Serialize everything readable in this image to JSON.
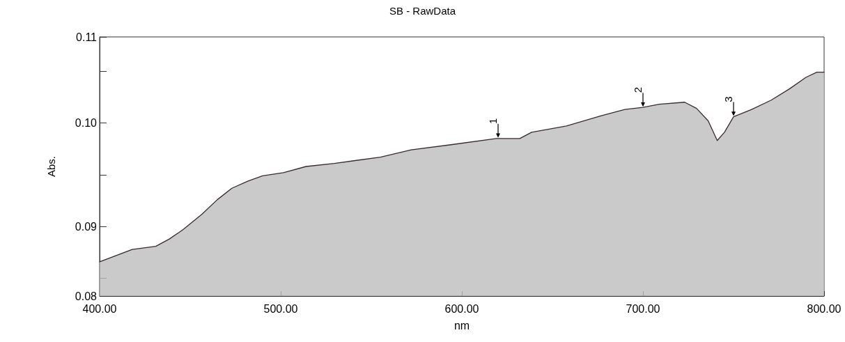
{
  "chart_data": {
    "type": "area",
    "title": "SB - RawData",
    "xlabel": "nm",
    "ylabel": "Abs.",
    "x": [
      400,
      418,
      431,
      438.5,
      446,
      456.5,
      465,
      473,
      482,
      490,
      501.5,
      514,
      529.6,
      555,
      572,
      594,
      619,
      632,
      638.5,
      657.7,
      677,
      690,
      700,
      709,
      723,
      729.6,
      736,
      741,
      745,
      750,
      760,
      770.8,
      781,
      790,
      796,
      800
    ],
    "series": [
      {
        "color": "#3a2a2a",
        "values": [
          0.0866,
          0.0878,
          0.0881,
          0.0888,
          0.0897,
          0.0912,
          0.0926,
          0.0937,
          0.0944,
          0.0949,
          0.0952,
          0.0958,
          0.0961,
          0.0967,
          0.0974,
          0.0979,
          0.0985,
          0.0985,
          0.0991,
          0.0997,
          0.1007,
          0.1013,
          0.1015,
          0.1018,
          0.102,
          0.1014,
          0.1002,
          0.0983,
          0.0991,
          0.1006,
          0.1013,
          0.1022,
          0.1033,
          0.1044,
          0.1049,
          0.1049
        ]
      }
    ],
    "xlim": [
      400,
      800
    ],
    "xticks": [
      {
        "value": 400,
        "label": "400.00"
      },
      {
        "value": 500,
        "label": "500.00"
      },
      {
        "value": 600,
        "label": "600.00"
      },
      {
        "value": 700,
        "label": "700.00"
      },
      {
        "value": 800,
        "label": "800.00"
      }
    ],
    "ylim": [
      0.0833,
      0.1083
    ],
    "yticks": [
      {
        "value": 0.0833,
        "label": "0.08"
      },
      {
        "value": 0.085,
        "label": null
      },
      {
        "value": 0.09,
        "label": "0.09"
      },
      {
        "value": 0.095,
        "label": null
      },
      {
        "value": 0.1,
        "label": "0.10"
      },
      {
        "value": 0.105,
        "label": null
      },
      {
        "value": 0.1083,
        "label": "0.11"
      }
    ],
    "annotations": [
      {
        "text": "1",
        "x": 620,
        "y": 0.0985
      },
      {
        "text": "2",
        "x": 700,
        "y": 0.1015
      },
      {
        "text": "3",
        "x": 750,
        "y": 0.1006
      }
    ],
    "grid": false,
    "marker": "none",
    "line_style": "solid"
  }
}
